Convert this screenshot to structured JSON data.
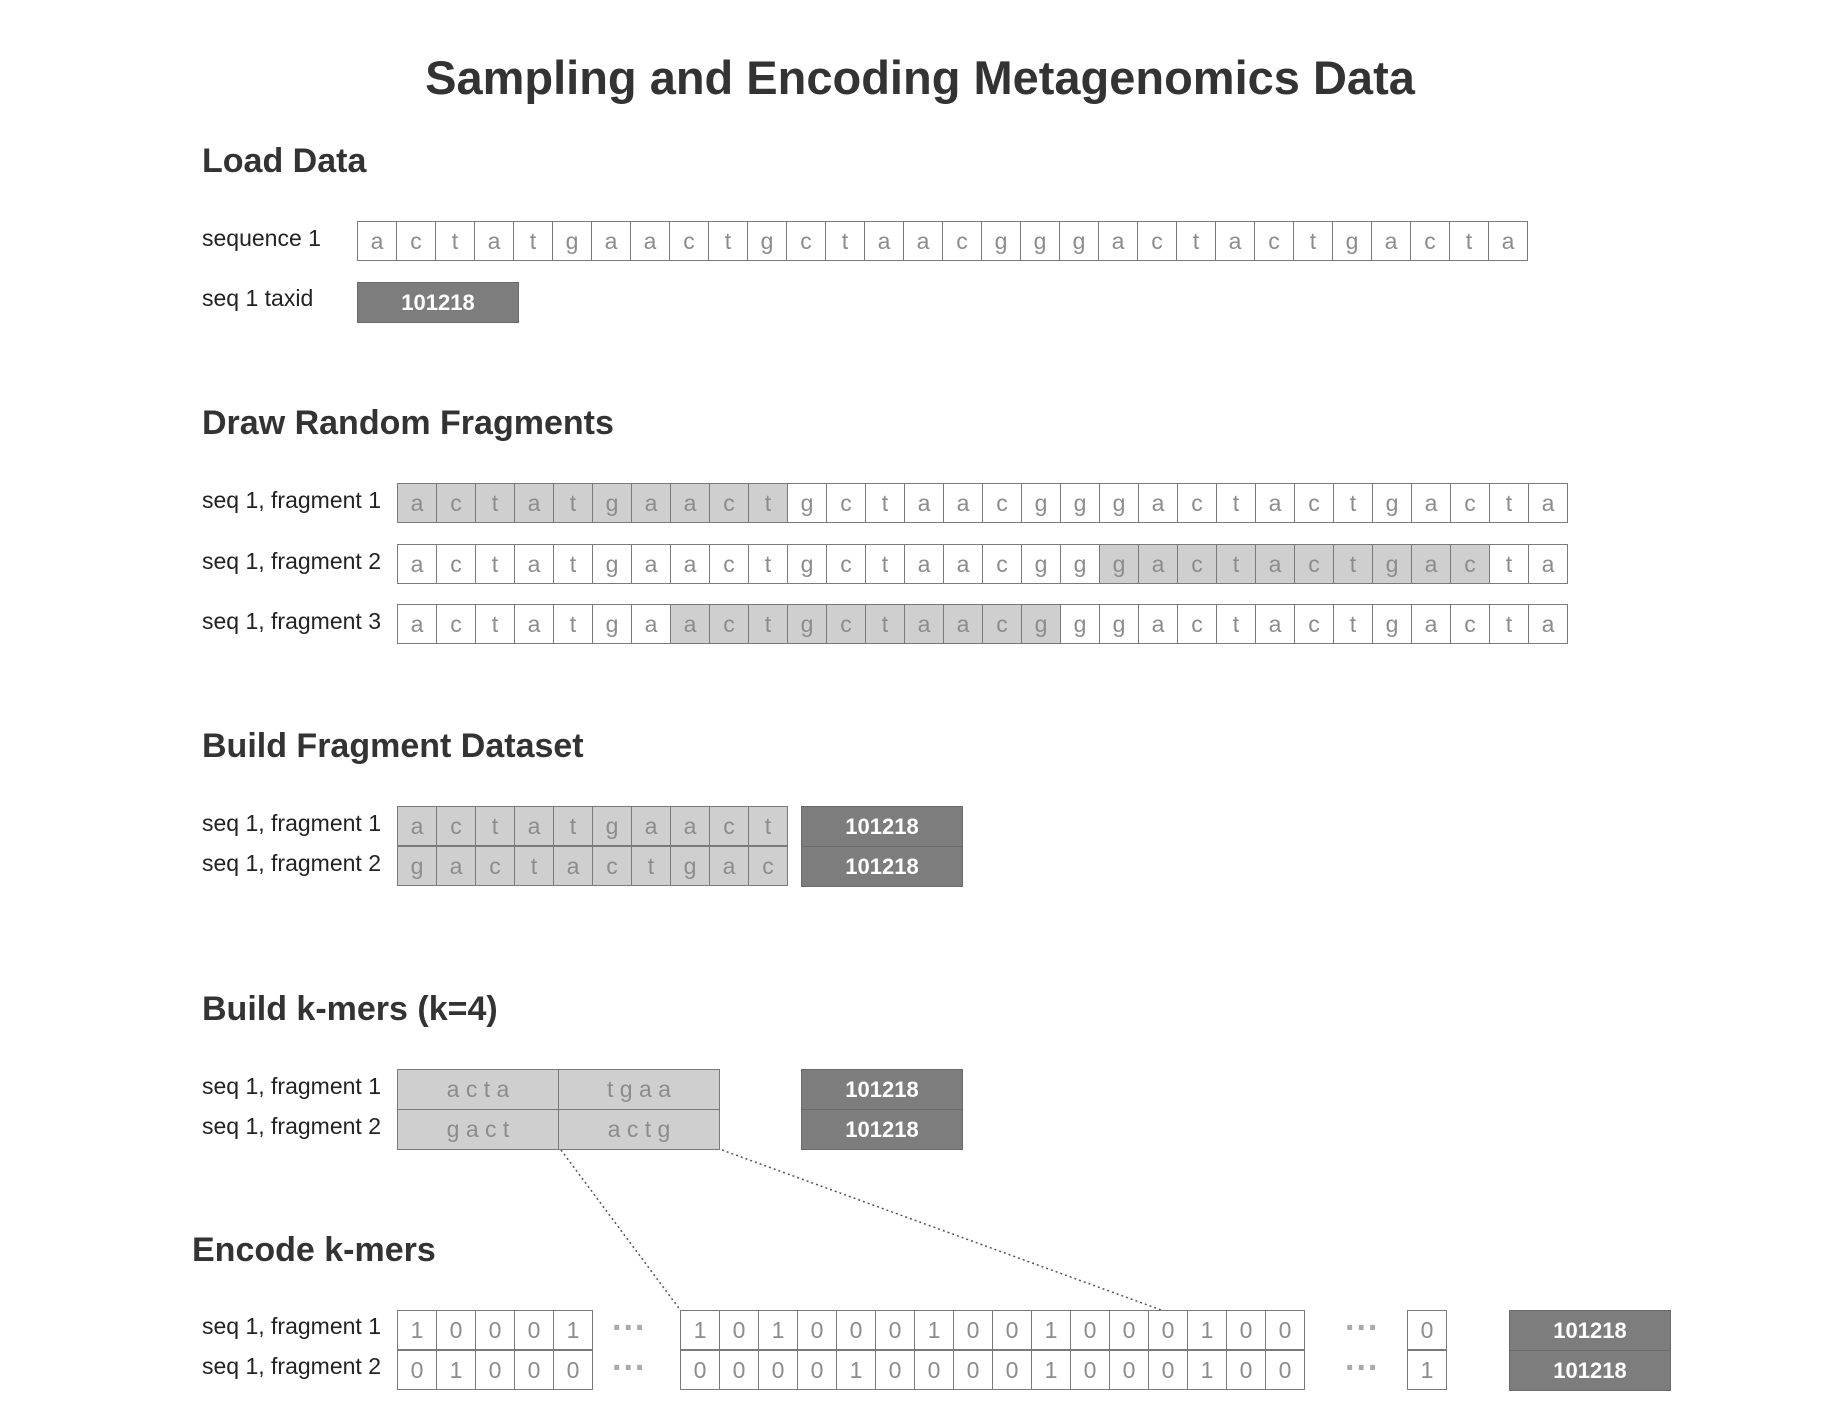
{
  "title": "Sampling and Encoding Metagenomics Data",
  "sections": {
    "load": "Load Data",
    "draw": "Draw Random Fragments",
    "dataset": "Build Fragment Dataset",
    "kmers": "Build k-mers (k=4)",
    "encode": "Encode k-mers"
  },
  "labels": {
    "sequence1": "sequence 1",
    "taxid_label": "seq 1 taxid",
    "frag1": "seq 1, fragment 1",
    "frag2": "seq 1, fragment 2",
    "frag3": "seq 1, fragment 3"
  },
  "taxid": "101218",
  "sequence": [
    "a",
    "c",
    "t",
    "a",
    "t",
    "g",
    "a",
    "a",
    "c",
    "t",
    "g",
    "c",
    "t",
    "a",
    "a",
    "c",
    "g",
    "g",
    "g",
    "a",
    "c",
    "t",
    "a",
    "c",
    "t",
    "g",
    "a",
    "c",
    "t",
    "a"
  ],
  "fragments": [
    {
      "start": 0,
      "end": 9
    },
    {
      "start": 18,
      "end": 27
    },
    {
      "start": 7,
      "end": 16
    }
  ],
  "dataset": [
    [
      "a",
      "c",
      "t",
      "a",
      "t",
      "g",
      "a",
      "a",
      "c",
      "t"
    ],
    [
      "g",
      "a",
      "c",
      "t",
      "a",
      "c",
      "t",
      "g",
      "a",
      "c"
    ]
  ],
  "kmers": [
    [
      "a c t a",
      "t g a a"
    ],
    [
      "g a c t",
      "a c t g"
    ]
  ],
  "encoding": {
    "ellipsis": "...",
    "fragment1": {
      "left": [
        "1",
        "0",
        "0",
        "0",
        "1"
      ],
      "mid": [
        "1",
        "0",
        "1",
        "0",
        "0",
        "0",
        "1",
        "0",
        "0",
        "1",
        "0",
        "0",
        "0",
        "1",
        "0",
        "0"
      ],
      "right": [
        "0"
      ]
    },
    "fragment2": {
      "left": [
        "0",
        "1",
        "0",
        "0",
        "0"
      ],
      "mid": [
        "0",
        "0",
        "0",
        "0",
        "1",
        "0",
        "0",
        "0",
        "0",
        "1",
        "0",
        "0",
        "0",
        "1",
        "0",
        "0"
      ],
      "right": [
        "1"
      ]
    }
  },
  "colors": {
    "highlight": "#cfcfcf",
    "taxid_bg": "#7d7d7d",
    "border": "#7a7a7a",
    "text": "#333333"
  }
}
